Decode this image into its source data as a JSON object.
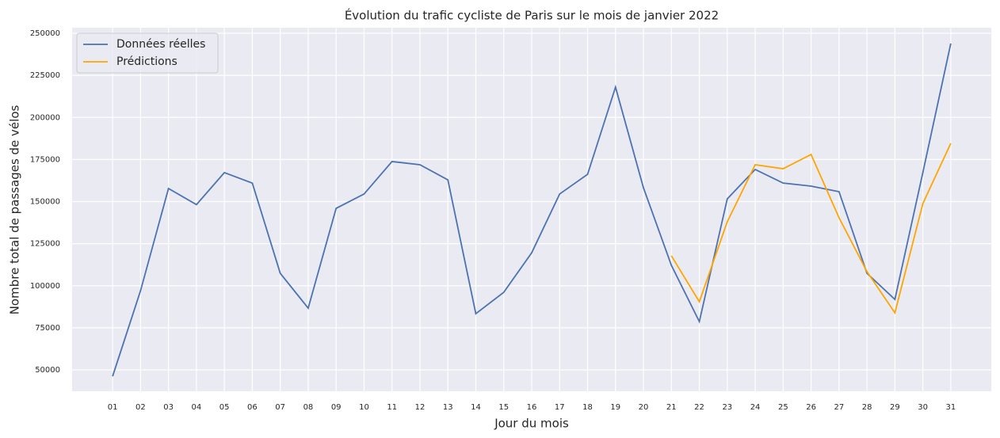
{
  "chart_data": {
    "type": "line",
    "title": "Évolution du trafic cycliste de Paris sur le mois de janvier 2022",
    "xlabel": "Jour du mois",
    "ylabel": "Nombre total de passages de vélos",
    "categories": [
      "01",
      "02",
      "03",
      "04",
      "05",
      "06",
      "07",
      "08",
      "09",
      "10",
      "11",
      "12",
      "13",
      "14",
      "15",
      "16",
      "17",
      "18",
      "19",
      "20",
      "21",
      "22",
      "23",
      "24",
      "25",
      "26",
      "27",
      "28",
      "29",
      "30",
      "31"
    ],
    "series": [
      {
        "name": "Données réelles",
        "color": "#4c72b0",
        "values": [
          46200,
          97100,
          157800,
          148200,
          167200,
          161000,
          107400,
          86700,
          146000,
          154500,
          173800,
          171900,
          162900,
          83400,
          96100,
          119600,
          154500,
          166200,
          218000,
          158200,
          112100,
          78700,
          151600,
          169100,
          161000,
          159200,
          155900,
          107400,
          91900,
          167200,
          243900
        ]
      },
      {
        "name": "Prédictions",
        "color": "#ffa500",
        "values": [
          null,
          null,
          null,
          null,
          null,
          null,
          null,
          null,
          null,
          null,
          null,
          null,
          null,
          null,
          null,
          null,
          null,
          null,
          null,
          null,
          117800,
          90500,
          138000,
          171900,
          169500,
          178000,
          140400,
          108400,
          83900,
          148800,
          184600
        ]
      }
    ],
    "ylim": [
      37300,
      253300
    ],
    "yticks": [
      50000,
      75000,
      100000,
      125000,
      150000,
      175000,
      200000,
      225000,
      250000
    ],
    "grid": true,
    "legend": "upper left"
  }
}
